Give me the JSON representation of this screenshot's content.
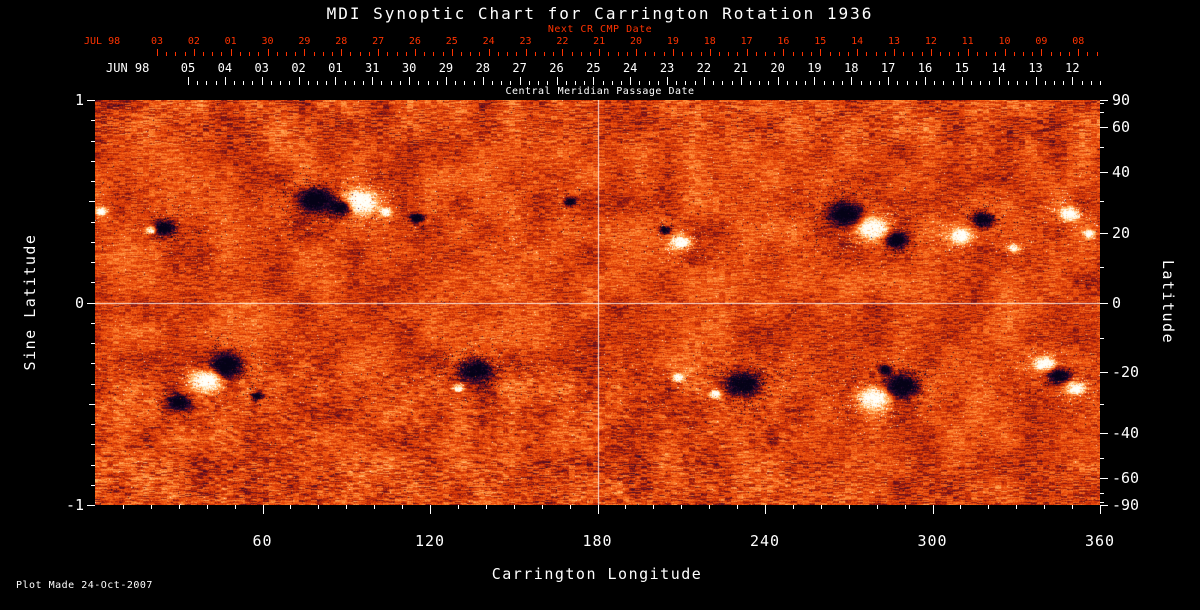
{
  "colors": {
    "background": "#000000",
    "foreground": "#ffffff",
    "date_red": "#ff3300",
    "map_base_orange": "#d73a08",
    "negative_polarity_dark": "#0a0526",
    "positive_polarity_light": "#fffff8"
  },
  "title": "MDI Synoptic Chart for Carrington Rotation 1936",
  "top_axis": {
    "next_cr_label": "Next CR CMP Date",
    "next_cr_month": "JUL 98",
    "next_cr_dates": [
      "03",
      "02",
      "01",
      "30",
      "29",
      "28",
      "27",
      "26",
      "25",
      "24",
      "23",
      "22",
      "21",
      "20",
      "19",
      "18",
      "17",
      "16",
      "15",
      "14",
      "13",
      "12",
      "11",
      "10",
      "09",
      "08"
    ],
    "cmp_label": "Central Meridian Passage Date",
    "cmp_month": "JUN 98",
    "cmp_dates": [
      "05",
      "04",
      "03",
      "02",
      "01",
      "31",
      "30",
      "29",
      "28",
      "27",
      "26",
      "25",
      "24",
      "23",
      "22",
      "21",
      "20",
      "19",
      "18",
      "17",
      "16",
      "15",
      "14",
      "13",
      "12"
    ]
  },
  "x_axis": {
    "label": "Carrington Longitude",
    "ticks": [
      60,
      120,
      180,
      240,
      300,
      360
    ],
    "range": [
      0,
      360
    ]
  },
  "y_left": {
    "label": "Sine Latitude",
    "ticks": [
      "1",
      "0",
      "-1"
    ],
    "values": [
      1,
      0,
      -1
    ],
    "range": [
      -1,
      1
    ]
  },
  "y_right": {
    "label": "Latitude",
    "ticks": [
      90,
      60,
      40,
      20,
      0,
      -20,
      -40,
      -60,
      -90
    ]
  },
  "footer": {
    "plot_made": "Plot Made 24-Oct-2007"
  },
  "chart_data": {
    "type": "heatmap",
    "title": "MDI Synoptic Chart for Carrington Rotation 1936",
    "subtitle_top_axis": "Central Meridian Passage Date (JUN 98) and Next CR CMP Date (JUL 98)",
    "xlabel": "Carrington Longitude",
    "ylabel_left": "Sine Latitude",
    "ylabel_right": "Latitude",
    "xlim": [
      0,
      360
    ],
    "ylim_sine_latitude": [
      -1,
      1
    ],
    "x_ticks": [
      60,
      120,
      180,
      240,
      300,
      360
    ],
    "left_ticks_sine_latitude": [
      1,
      0,
      -1
    ],
    "right_ticks_latitude": [
      90,
      60,
      40,
      20,
      0,
      -20,
      -40,
      -60,
      -90
    ],
    "cmp_dates_jun98": [
      "05",
      "04",
      "03",
      "02",
      "01",
      "31",
      "30",
      "29",
      "28",
      "27",
      "26",
      "25",
      "24",
      "23",
      "22",
      "21",
      "20",
      "19",
      "18",
      "17",
      "16",
      "15",
      "14",
      "13",
      "12"
    ],
    "next_cr_dates_jul98": [
      "03",
      "02",
      "01",
      "30",
      "29",
      "28",
      "27",
      "26",
      "25",
      "24",
      "23",
      "22",
      "21",
      "20",
      "19",
      "18",
      "17",
      "16",
      "15",
      "14",
      "13",
      "12",
      "11",
      "10",
      "09",
      "08"
    ],
    "grid_lines": {
      "vertical_longitude": 180,
      "horizontal_sine_latitude": 0
    },
    "colormap": "solar magnetogram: quiet sun mottled orange-red, negative polarity dark navy/black, positive polarity white/cream",
    "activity_bands_sine_latitude": [
      0.4,
      -0.4
    ],
    "active_regions": [
      {
        "lon": 20,
        "sine_lat": 0.36,
        "polarity": "positive",
        "size": "small"
      },
      {
        "lon": 24.5,
        "sine_lat": 0.37,
        "polarity": "negative",
        "size": "medium"
      },
      {
        "lon": 2,
        "sine_lat": 0.45,
        "polarity": "positive",
        "size": "small"
      },
      {
        "lon": 79,
        "sine_lat": 0.51,
        "polarity": "negative",
        "size": "large"
      },
      {
        "lon": 88,
        "sine_lat": 0.47,
        "polarity": "negative",
        "size": "medium"
      },
      {
        "lon": 95,
        "sine_lat": 0.5,
        "polarity": "positive",
        "size": "large"
      },
      {
        "lon": 104,
        "sine_lat": 0.45,
        "polarity": "positive",
        "size": "small"
      },
      {
        "lon": 115,
        "sine_lat": 0.42,
        "polarity": "negative",
        "size": "small"
      },
      {
        "lon": 170,
        "sine_lat": 0.5,
        "polarity": "negative",
        "size": "small"
      },
      {
        "lon": 204,
        "sine_lat": 0.36,
        "polarity": "negative",
        "size": "small"
      },
      {
        "lon": 210,
        "sine_lat": 0.3,
        "polarity": "positive",
        "size": "medium"
      },
      {
        "lon": 269,
        "sine_lat": 0.44,
        "polarity": "negative",
        "size": "large"
      },
      {
        "lon": 278,
        "sine_lat": 0.37,
        "polarity": "positive",
        "size": "large"
      },
      {
        "lon": 287,
        "sine_lat": 0.31,
        "polarity": "negative",
        "size": "medium"
      },
      {
        "lon": 310,
        "sine_lat": 0.33,
        "polarity": "positive",
        "size": "medium"
      },
      {
        "lon": 318,
        "sine_lat": 0.41,
        "polarity": "negative",
        "size": "medium"
      },
      {
        "lon": 329,
        "sine_lat": 0.27,
        "polarity": "positive",
        "size": "small"
      },
      {
        "lon": 349,
        "sine_lat": 0.44,
        "polarity": "positive",
        "size": "medium"
      },
      {
        "lon": 356,
        "sine_lat": 0.34,
        "polarity": "positive",
        "size": "small"
      },
      {
        "lon": 30,
        "sine_lat": -0.49,
        "polarity": "negative",
        "size": "medium"
      },
      {
        "lon": 40,
        "sine_lat": -0.38,
        "polarity": "positive",
        "size": "large"
      },
      {
        "lon": 47,
        "sine_lat": -0.31,
        "polarity": "negative",
        "size": "large"
      },
      {
        "lon": 58,
        "sine_lat": -0.46,
        "polarity": "negative",
        "size": "small"
      },
      {
        "lon": 130,
        "sine_lat": -0.42,
        "polarity": "positive",
        "size": "small"
      },
      {
        "lon": 136,
        "sine_lat": -0.33,
        "polarity": "negative",
        "size": "large"
      },
      {
        "lon": 209,
        "sine_lat": -0.37,
        "polarity": "positive",
        "size": "small"
      },
      {
        "lon": 222,
        "sine_lat": -0.45,
        "polarity": "positive",
        "size": "small"
      },
      {
        "lon": 232,
        "sine_lat": -0.4,
        "polarity": "negative",
        "size": "large"
      },
      {
        "lon": 279,
        "sine_lat": -0.47,
        "polarity": "positive",
        "size": "large"
      },
      {
        "lon": 289,
        "sine_lat": -0.41,
        "polarity": "negative",
        "size": "large"
      },
      {
        "lon": 283,
        "sine_lat": -0.33,
        "polarity": "negative",
        "size": "small"
      },
      {
        "lon": 340,
        "sine_lat": -0.3,
        "polarity": "positive",
        "size": "medium"
      },
      {
        "lon": 345,
        "sine_lat": -0.36,
        "polarity": "negative",
        "size": "medium"
      },
      {
        "lon": 351,
        "sine_lat": -0.42,
        "polarity": "positive",
        "size": "medium"
      }
    ]
  }
}
